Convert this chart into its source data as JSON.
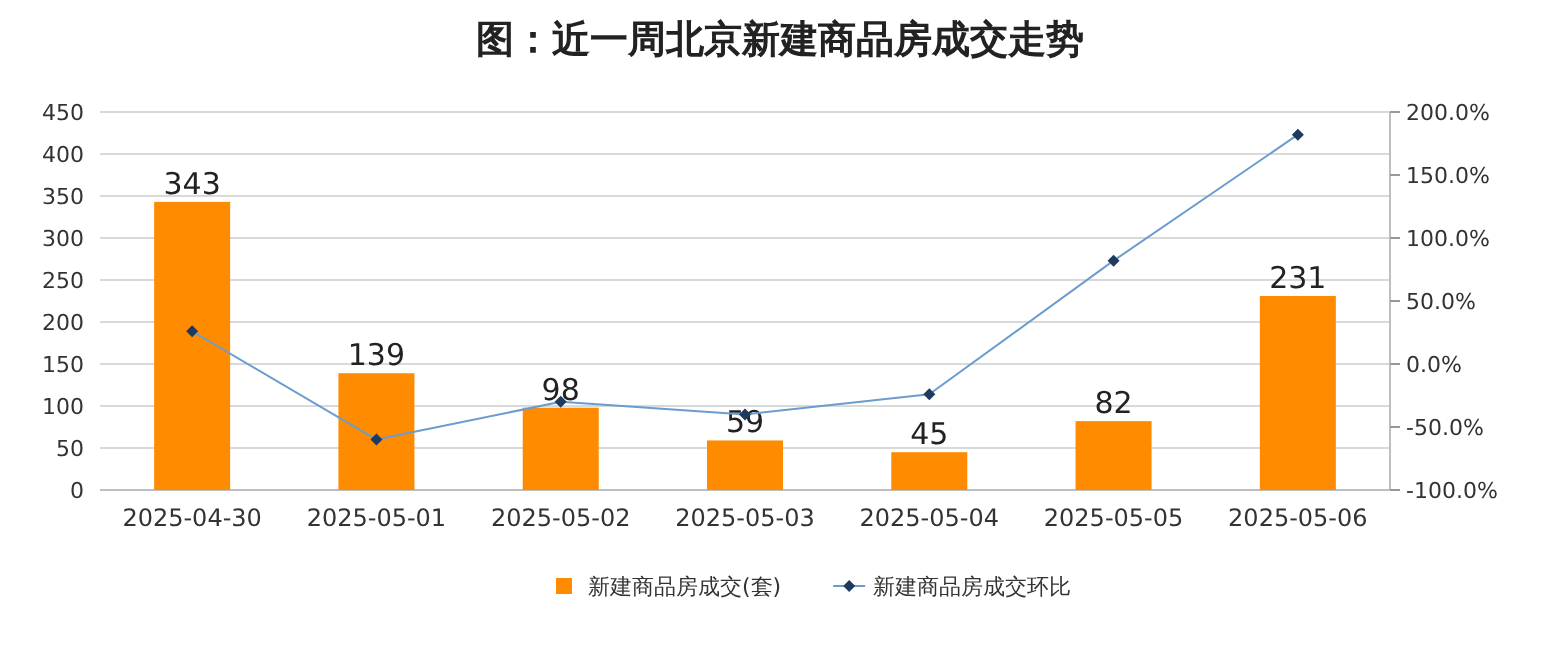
{
  "chart_data": {
    "type": "bar",
    "title": "图：近一周北京新建商品房成交走势",
    "categories": [
      "2025-04-30",
      "2025-05-01",
      "2025-05-02",
      "2025-05-03",
      "2025-05-04",
      "2025-05-05",
      "2025-05-06"
    ],
    "series": [
      {
        "name": "新建商品房成交(套)",
        "color": "#ff8c00",
        "values": [
          343,
          139,
          98,
          59,
          45,
          82,
          231
        ],
        "value_labels": [
          "343",
          "139",
          "98",
          "59",
          "45",
          "82",
          "231"
        ]
      },
      {
        "name": "新建商品房成交环比",
        "type": "line",
        "axis": "y2",
        "color": "#6a9ccf",
        "marker": "diamond",
        "values": [
          26,
          -60,
          -30,
          -40,
          -24,
          82,
          182
        ]
      }
    ],
    "ylim": [
      0,
      450
    ],
    "yticks": [
      0,
      50,
      100,
      150,
      200,
      250,
      300,
      350,
      400,
      450
    ],
    "y2lim": [
      -100,
      200
    ],
    "y2ticks": [
      {
        "value": -100,
        "label": "-100.0%"
      },
      {
        "value": -50,
        "label": "-50.0%"
      },
      {
        "value": 0,
        "label": "0.0%"
      },
      {
        "value": 50,
        "label": "50.0%"
      },
      {
        "value": 100,
        "label": "100.0%"
      },
      {
        "value": 150,
        "label": "150.0%"
      },
      {
        "value": 200,
        "label": "200.0%"
      }
    ],
    "grid": "y",
    "legend": "bottom"
  }
}
